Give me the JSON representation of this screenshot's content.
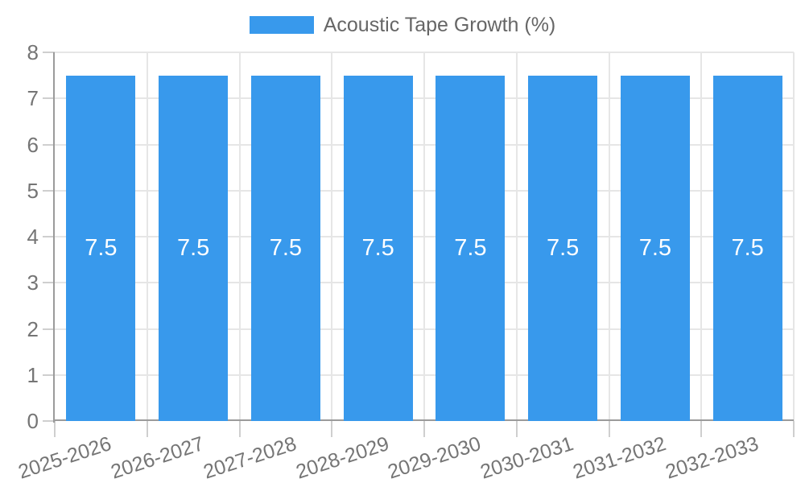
{
  "chart_data": {
    "type": "bar",
    "title": "",
    "legend": {
      "label": "Acoustic Tape Growth (%)",
      "position": "top"
    },
    "categories": [
      "2025-2026",
      "2026-2027",
      "2027-2028",
      "2028-2029",
      "2029-2030",
      "2030-2031",
      "2031-2032",
      "2032-2033"
    ],
    "series": [
      {
        "name": "Acoustic Tape Growth (%)",
        "values": [
          7.5,
          7.5,
          7.5,
          7.5,
          7.5,
          7.5,
          7.5,
          7.5
        ]
      }
    ],
    "data_labels": [
      "7.5",
      "7.5",
      "7.5",
      "7.5",
      "7.5",
      "7.5",
      "7.5",
      "7.5"
    ],
    "xlabel": "",
    "ylabel": "",
    "ylim": [
      0,
      8
    ],
    "yticks": [
      0,
      1,
      2,
      3,
      4,
      5,
      6,
      7,
      8
    ],
    "grid": true,
    "xlabel_rotation_deg": -18
  },
  "colors": {
    "bar": "#3899ec",
    "grid_line": "#e6e6e6",
    "axis_line": "#9b9b9b",
    "tick_mark": "#cfcfcf",
    "axis_text": "#757575",
    "legend_text": "#666666",
    "bar_label_text": "#ffffff",
    "background": "#ffffff"
  }
}
